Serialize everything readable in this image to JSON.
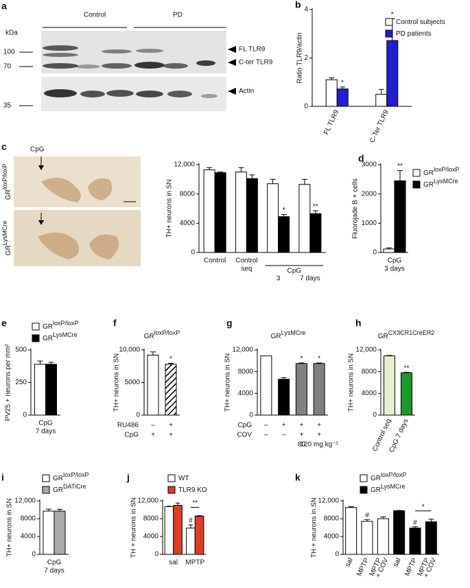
{
  "blot": {
    "panel": "a",
    "unit": "kDa",
    "groups": [
      "Control",
      "PD"
    ],
    "markers": [
      100,
      70,
      35
    ],
    "bands": [
      "FL TLR9",
      "C-ter TLR9",
      "Actin"
    ]
  },
  "histology": {
    "panel": "c",
    "label": "CpG",
    "rows": [
      {
        "name": "GR",
        "sup": "loxP/loxP"
      },
      {
        "name": "GR",
        "sup": "LysMCre"
      }
    ]
  },
  "chart_data": [
    {
      "panel": "b",
      "type": "bar",
      "ylabel": "Ratio TLR9/actin",
      "ylim": [
        0,
        4
      ],
      "yticks": [
        0,
        2,
        4
      ],
      "categories": [
        "FL TLR9",
        "C-Ter TLR9"
      ],
      "rotate_labels": true,
      "legend": "top right",
      "series": [
        {
          "name": "Control subjects",
          "color": "#ffffff",
          "values": [
            1.1,
            0.5
          ],
          "errors": [
            0.08,
            0.2
          ]
        },
        {
          "name": "PD patients",
          "color": "#1f1fd8",
          "values": [
            0.72,
            2.72
          ],
          "errors": [
            0.08,
            0.9
          ],
          "sig": [
            "*",
            "*"
          ]
        }
      ]
    },
    {
      "type": "bar",
      "ylabel": "TH+ neurons in SN",
      "ylim": [
        0,
        12000
      ],
      "yticks": [
        0,
        4000,
        8000,
        {
          "value": 12000,
          "label": "12,000"
        }
      ],
      "categories": [
        [
          "Control"
        ],
        [
          "Control",
          "seq"
        ],
        [
          "3"
        ],
        [
          "7 days"
        ]
      ],
      "category_groups": [
        {
          "label": "CpG",
          "from": 2,
          "to": 3
        }
      ],
      "series": [
        {
          "color": "#ffffff",
          "values": [
            11300,
            11000,
            9400,
            9300
          ],
          "errors": [
            300,
            600,
            600,
            700
          ]
        },
        {
          "color": "#000000",
          "values": [
            10900,
            10100,
            4900,
            5300
          ],
          "errors": [
            100,
            500,
            300,
            400
          ],
          "sig": [
            null,
            null,
            "*",
            "**"
          ]
        }
      ]
    },
    {
      "panel": "d",
      "type": "bar",
      "ylabel": "Fluorojade B + cells",
      "ylim": [
        0,
        3000
      ],
      "yticks": [
        0,
        1000,
        2000,
        3000
      ],
      "categories": [
        [
          "CpG",
          "3 days"
        ]
      ],
      "legend": "right",
      "series": [
        {
          "name": "GR",
          "name_sup": "loxP/loxP",
          "color": "#ffffff",
          "values": [
            120
          ],
          "errors": [
            40
          ]
        },
        {
          "name": "GR",
          "name_sup": "LysMCre",
          "color": "#000000",
          "values": [
            2450
          ],
          "errors": [
            350
          ],
          "sig": [
            "**"
          ]
        }
      ]
    },
    {
      "panel": "e",
      "type": "bar",
      "ylabel": "PV25 + neurons per mm²",
      "ylim": [
        0,
        500
      ],
      "yticks": [
        0,
        250,
        500
      ],
      "categories": [
        [
          "CpG",
          "7 days"
        ]
      ],
      "legend": "top",
      "series": [
        {
          "name": "GR",
          "name_sup": "loxP/loxP",
          "color": "#ffffff",
          "values": [
            390
          ],
          "errors": [
            25
          ]
        },
        {
          "name": "GR",
          "name_sup": "LysMCre",
          "color": "#000000",
          "values": [
            390
          ],
          "errors": [
            15
          ]
        }
      ]
    },
    {
      "panel": "f",
      "type": "bar",
      "title": "GR",
      "title_sup": "loxP/loxP",
      "ylabel": "TH+ neurons in SN",
      "ylim": [
        0,
        10000
      ],
      "yticks": [
        0,
        5000,
        {
          "value": 10000,
          "label": "10,000"
        }
      ],
      "categories": [
        null,
        null
      ],
      "series": [
        {
          "colors": [
            "#ffffff",
            "hatch"
          ],
          "values": [
            9200,
            7800
          ],
          "errors": [
            500,
            150
          ],
          "sig": [
            null,
            "*"
          ]
        }
      ],
      "conditions": [
        {
          "label": "RU486",
          "values": [
            "–",
            "+"
          ]
        },
        {
          "label": "CpG",
          "values": [
            "+",
            "+"
          ]
        }
      ]
    },
    {
      "panel": "g",
      "type": "bar",
      "title": "GR",
      "title_sup": "LysMCre",
      "ylabel": "TH+ neurons in SN",
      "ylim": [
        0,
        12000
      ],
      "yticks": [
        0,
        4000,
        8000,
        {
          "value": 12000,
          "label": "12,000"
        }
      ],
      "categories": [
        null,
        null,
        null,
        null
      ],
      "series": [
        {
          "colors": [
            "#ffffff",
            "#000000",
            "#808080",
            "#808080"
          ],
          "values": [
            10900,
            6600,
            9500,
            9500
          ],
          "errors": [
            null,
            300,
            100,
            100
          ],
          "sig": [
            null,
            null,
            "*",
            "*"
          ]
        }
      ],
      "conditions": [
        {
          "label": "CpG",
          "values": [
            "–",
            "+",
            "+",
            "+"
          ]
        },
        {
          "label": "COV",
          "values": [
            "–",
            "–",
            "+",
            "+"
          ]
        }
      ],
      "doses": [
        null,
        null,
        "80",
        "120 mg kg⁻¹"
      ]
    },
    {
      "panel": "h",
      "type": "bar",
      "title": "GR",
      "title_sup": "CX3CR1CreER2",
      "ylabel": "TH+ neurons in SN",
      "ylim": [
        0,
        12000
      ],
      "yticks": [
        0,
        4000,
        8000,
        {
          "value": 12000,
          "label": "12,000"
        }
      ],
      "categories": [
        "Control seq",
        "CpG 7 days"
      ],
      "rotate_labels": true,
      "series": [
        {
          "colors": [
            "#e4efd0",
            "#1a9a2a"
          ],
          "values": [
            10900,
            7800
          ],
          "errors": [
            80,
            80
          ],
          "sig": [
            null,
            "**"
          ]
        }
      ]
    },
    {
      "panel": "i",
      "type": "bar",
      "ylabel": "TH+ neurons in SN",
      "ylim": [
        0,
        12000
      ],
      "yticks": [
        0,
        4000,
        8000,
        {
          "value": 12000,
          "label": "12,000"
        }
      ],
      "categories": [
        [
          "CpG",
          "7 days"
        ]
      ],
      "legend": "top",
      "series": [
        {
          "name": "GR",
          "name_sup": "loxP/loxP",
          "color": "#ffffff",
          "values": [
            9700
          ],
          "errors": [
            450
          ]
        },
        {
          "name": "GR",
          "name_sup": "DATiCre",
          "color": "#aaaaaa",
          "values": [
            9700
          ],
          "errors": [
            400
          ]
        }
      ]
    },
    {
      "panel": "j",
      "type": "bar",
      "ylabel": "TH + neurons in SN",
      "ylim": [
        0,
        12000
      ],
      "yticks": [
        0,
        4000,
        8000,
        {
          "value": 12000,
          "label": "12,000"
        }
      ],
      "categories": [
        [
          "sal"
        ],
        [
          "MPTP"
        ]
      ],
      "legend": "top",
      "series": [
        {
          "name": "WT",
          "color": "#ffffff",
          "values": [
            10700,
            5900
          ],
          "errors": [
            100,
            700
          ],
          "sig": [
            null,
            "#"
          ]
        },
        {
          "name": "TLR9 KO",
          "color": "#e23b25",
          "values": [
            11000,
            8600
          ],
          "errors": [
            500,
            100
          ]
        }
      ],
      "bracket": {
        "label": "**",
        "bars": [
          [
            0,
            1
          ],
          [
            1,
            1
          ]
        ]
      }
    },
    {
      "panel": "k",
      "type": "bar",
      "ylabel": "TH + neurons in SN",
      "ylim": [
        0,
        12000
      ],
      "yticks": [
        0,
        4000,
        8000,
        {
          "value": 12000,
          "label": "12,000"
        }
      ],
      "categories": [
        [
          "sal"
        ],
        [
          "MPTP"
        ],
        [
          "MPTP",
          "+ COV"
        ],
        [
          "sal"
        ],
        [
          "MPTP"
        ],
        [
          "MPTP",
          "+ COV"
        ]
      ],
      "rotate_labels": true,
      "legend": "top",
      "series": [
        {
          "name": "GR",
          "name_sup": "loxP/loxP",
          "color": "#ffffff",
          "values": [
            10500,
            7400,
            8000,
            null,
            null,
            null
          ],
          "errors": [
            200,
            400,
            400,
            null,
            null,
            null
          ],
          "sig": [
            null,
            "#",
            null,
            null,
            null,
            null
          ]
        },
        {
          "name": "GR",
          "name_sup": "LysMCre",
          "color": "#000000",
          "values": [
            null,
            null,
            null,
            9800,
            5900,
            7300
          ],
          "errors": [
            null,
            null,
            null,
            50,
            300,
            600
          ],
          "sig": [
            null,
            null,
            null,
            null,
            "#",
            null
          ]
        }
      ],
      "bracket": {
        "label": "*",
        "bars": [
          [
            1,
            4
          ],
          [
            1,
            5
          ]
        ]
      }
    }
  ]
}
